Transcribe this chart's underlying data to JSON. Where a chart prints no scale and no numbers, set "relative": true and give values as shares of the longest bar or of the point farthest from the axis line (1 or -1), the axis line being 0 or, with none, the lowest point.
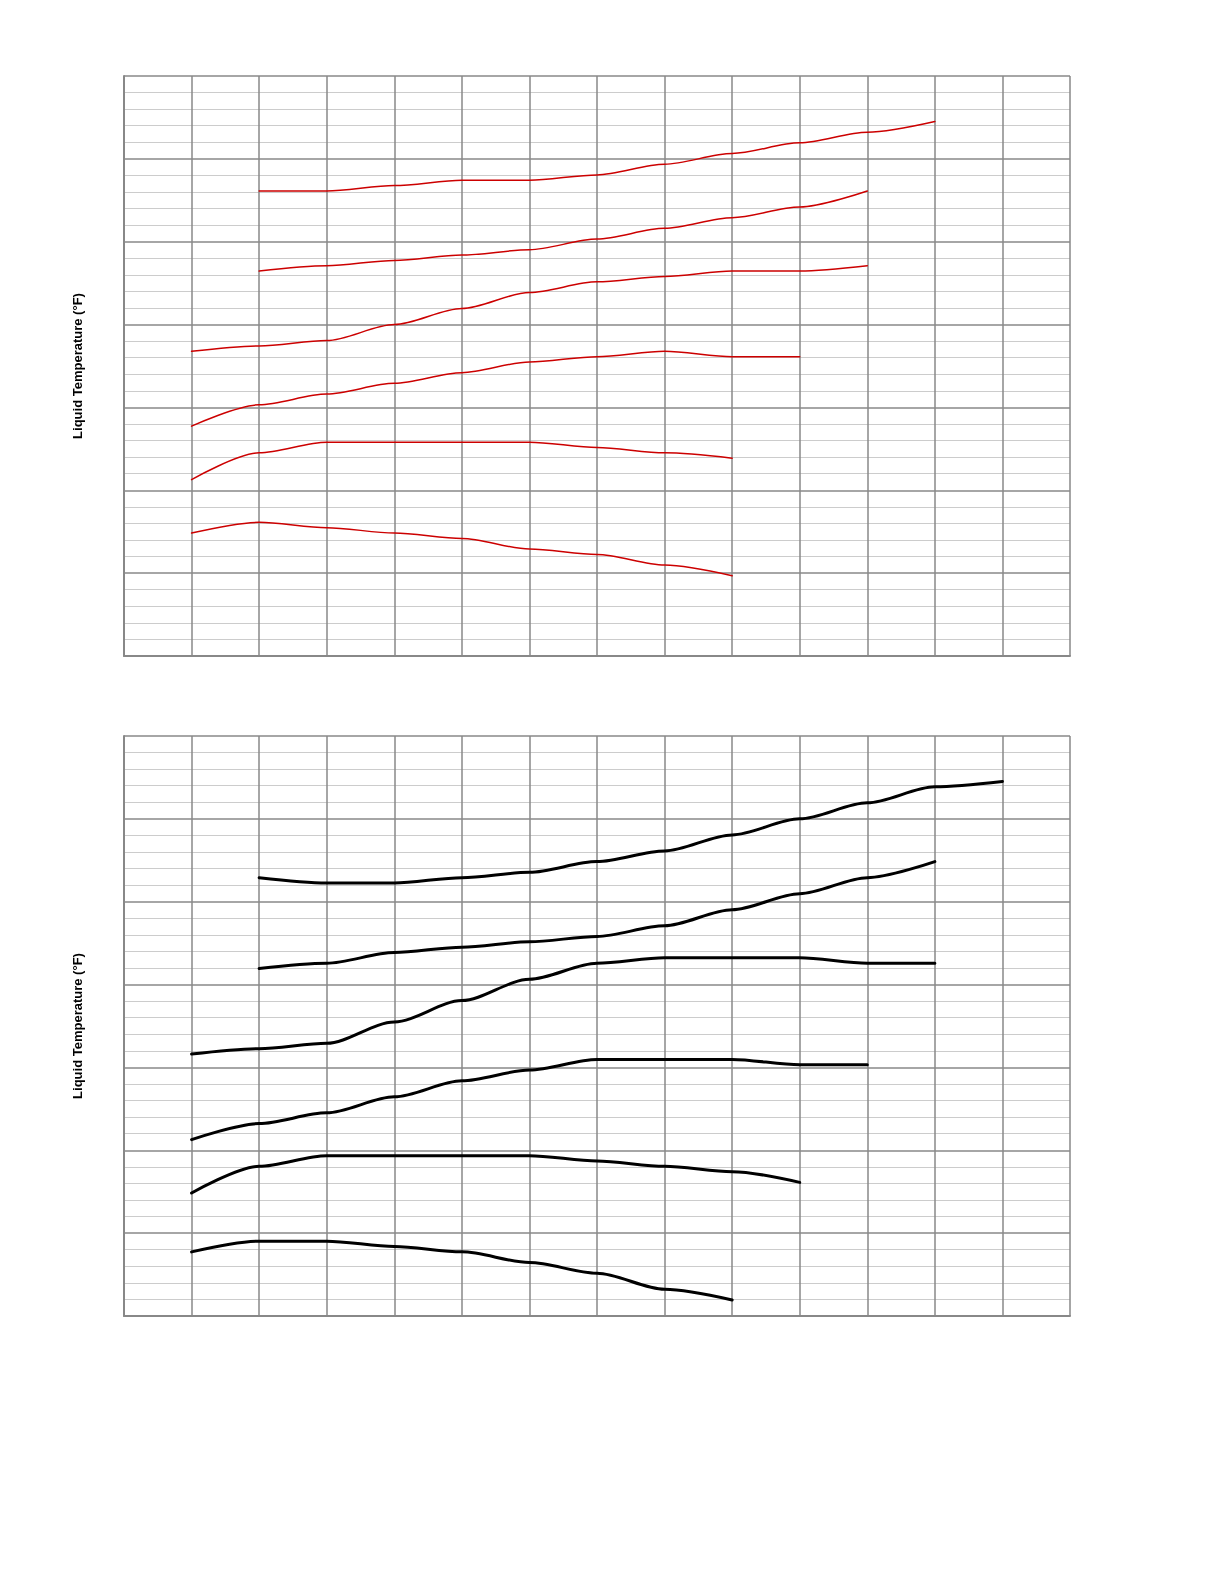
{
  "chart_data": [
    {
      "type": "line",
      "ylabel": "Liquid Temperature (°F)",
      "relative": true,
      "grid": true,
      "marker": "none",
      "categories": [
        null,
        null,
        null,
        null,
        null,
        null,
        null,
        null,
        null,
        null,
        null,
        null,
        null,
        null,
        null
      ],
      "series": [
        {
          "color": "#cc0000",
          "values": [
            null,
            null,
            0.87,
            0.87,
            0.88,
            0.89,
            0.89,
            0.9,
            0.92,
            0.94,
            0.96,
            0.98,
            1.0,
            null,
            null
          ]
        },
        {
          "color": "#cc0000",
          "values": [
            null,
            null,
            0.72,
            0.73,
            0.74,
            0.75,
            0.76,
            0.78,
            0.8,
            0.82,
            0.84,
            0.87,
            null,
            null,
            null
          ]
        },
        {
          "color": "#cc0000",
          "values": [
            null,
            0.57,
            0.58,
            0.59,
            0.62,
            0.65,
            0.68,
            0.7,
            0.71,
            0.72,
            0.72,
            0.73,
            null,
            null,
            null
          ]
        },
        {
          "color": "#cc0000",
          "values": [
            null,
            0.43,
            0.47,
            0.49,
            0.51,
            0.53,
            0.55,
            0.56,
            0.57,
            0.56,
            0.56,
            null,
            null,
            null,
            null
          ]
        },
        {
          "color": "#cc0000",
          "values": [
            null,
            0.33,
            0.38,
            0.4,
            0.4,
            0.4,
            0.4,
            0.39,
            0.38,
            0.37,
            null,
            null,
            null,
            null,
            null
          ]
        },
        {
          "color": "#cc0000",
          "values": [
            null,
            0.23,
            0.25,
            0.24,
            0.23,
            0.22,
            0.2,
            0.19,
            0.17,
            0.15,
            null,
            null,
            null,
            null,
            null
          ]
        }
      ]
    },
    {
      "type": "line",
      "ylabel": "Liquid Temperature (°F)",
      "relative": true,
      "grid": true,
      "marker": "none",
      "categories": [
        null,
        null,
        null,
        null,
        null,
        null,
        null,
        null,
        null,
        null,
        null,
        null,
        null,
        null,
        null
      ],
      "series": [
        {
          "color": "#000000",
          "values": [
            null,
            null,
            0.82,
            0.81,
            0.81,
            0.82,
            0.83,
            0.85,
            0.87,
            0.9,
            0.93,
            0.96,
            0.99,
            1.0,
            null
          ]
        },
        {
          "color": "#000000",
          "values": [
            null,
            null,
            0.65,
            0.66,
            0.68,
            0.69,
            0.7,
            0.71,
            0.73,
            0.76,
            0.79,
            0.82,
            0.85,
            null,
            null
          ]
        },
        {
          "color": "#000000",
          "values": [
            null,
            0.49,
            0.5,
            0.51,
            0.55,
            0.59,
            0.63,
            0.66,
            0.67,
            0.67,
            0.67,
            0.66,
            0.66,
            null,
            null
          ]
        },
        {
          "color": "#000000",
          "values": [
            null,
            0.33,
            0.36,
            0.38,
            0.41,
            0.44,
            0.46,
            0.48,
            0.48,
            0.48,
            0.47,
            0.47,
            null,
            null,
            null
          ]
        },
        {
          "color": "#000000",
          "values": [
            null,
            0.23,
            0.28,
            0.3,
            0.3,
            0.3,
            0.3,
            0.29,
            0.28,
            0.27,
            0.25,
            null,
            null,
            null,
            null
          ]
        },
        {
          "color": "#000000",
          "values": [
            null,
            0.12,
            0.14,
            0.14,
            0.13,
            0.12,
            0.1,
            0.08,
            0.05,
            0.03,
            null,
            null,
            null,
            null,
            null
          ]
        }
      ]
    }
  ]
}
